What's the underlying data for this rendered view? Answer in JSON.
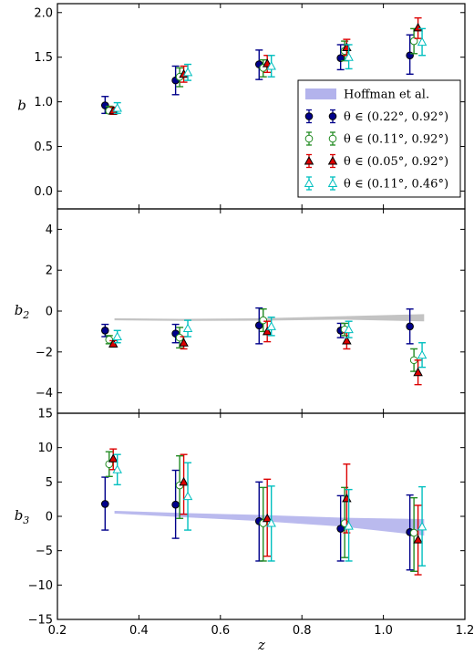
{
  "chart_data": {
    "type": "scatter",
    "xlabel": "z",
    "xlim": [
      0.2,
      1.2
    ],
    "x_ticks": [
      "0.2",
      "0.4",
      "0.6",
      "0.8",
      "1.0",
      "1.2"
    ],
    "legend_placement": "right",
    "legend": [
      {
        "label": "Hoffman et al.",
        "kind": "band",
        "color": "#b3b3ec"
      },
      {
        "label": "θ ∈ (0.22°, 0.92°)",
        "kind": "filled-circle",
        "color": "#00008b"
      },
      {
        "label": "θ ∈ (0.11°, 0.92°)",
        "kind": "open-circle",
        "color": "#228b22"
      },
      {
        "label": "θ ∈ (0.05°, 0.92°)",
        "kind": "filled-triangle",
        "color": "#dc0000"
      },
      {
        "label": "θ ∈ (0.11°, 0.46°)",
        "kind": "open-triangle",
        "color": "#00bfbf"
      }
    ],
    "panels": [
      {
        "ylabel": "b",
        "ylabel_sub": "",
        "ylim": [
          -0.2,
          2.1
        ],
        "y_ticks": [
          0.0,
          0.5,
          1.0,
          1.5,
          2.0
        ],
        "y_tick_labels": [
          "0.0",
          "0.5",
          "1.0",
          "1.5",
          "2.0"
        ],
        "series": [
          {
            "key": "s1",
            "x": [
              0.317,
              0.49,
              0.695,
              0.895,
              1.065
            ],
            "y": [
              0.96,
              1.24,
              1.42,
              1.49,
              1.52
            ],
            "yerr_low": [
              0.87,
              1.08,
              1.25,
              1.36,
              1.31
            ],
            "yerr_high": [
              1.06,
              1.4,
              1.58,
              1.64,
              1.75
            ]
          },
          {
            "key": "s2",
            "x": [
              0.327,
              0.5,
              0.705,
              0.905,
              1.075
            ],
            "y": [
              0.9,
              1.28,
              1.38,
              1.57,
              1.68
            ],
            "yerr_low": [
              0.87,
              1.17,
              1.28,
              1.46,
              1.54
            ],
            "yerr_high": [
              0.95,
              1.38,
              1.47,
              1.68,
              1.82
            ]
          },
          {
            "key": "s3",
            "x": [
              0.337,
              0.51,
              0.715,
              0.91,
              1.085
            ],
            "y": [
              0.9,
              1.31,
              1.43,
              1.61,
              1.83
            ],
            "yerr_low": [
              0.86,
              1.22,
              1.33,
              1.52,
              1.71
            ],
            "yerr_high": [
              0.94,
              1.4,
              1.52,
              1.7,
              1.94
            ]
          },
          {
            "key": "s4",
            "x": [
              0.347,
              0.52,
              0.725,
              0.915,
              1.095
            ],
            "y": [
              0.93,
              1.33,
              1.4,
              1.5,
              1.67
            ],
            "yerr_low": [
              0.87,
              1.24,
              1.28,
              1.37,
              1.52
            ],
            "yerr_high": [
              0.99,
              1.42,
              1.52,
              1.64,
              1.82
            ]
          }
        ]
      },
      {
        "ylabel": "b",
        "ylabel_sub": "2",
        "ylim": [
          -5,
          5
        ],
        "y_ticks": [
          -4,
          -2,
          0,
          2,
          4
        ],
        "y_tick_labels": [
          "−4",
          "−2",
          "0",
          "2",
          "4"
        ],
        "band": {
          "x": [
            0.34,
            0.5,
            0.7,
            0.9,
            1.1
          ],
          "low": [
            -0.45,
            -0.48,
            -0.47,
            -0.42,
            -0.5
          ],
          "high": [
            -0.35,
            -0.38,
            -0.35,
            -0.25,
            -0.15
          ],
          "color": "#bdbdbd"
        },
        "series": [
          {
            "key": "s1",
            "x": [
              0.317,
              0.49,
              0.695,
              0.895,
              1.065
            ],
            "y": [
              -0.95,
              -1.1,
              -0.7,
              -0.95,
              -0.75
            ],
            "yerr_low": [
              -1.25,
              -1.55,
              -1.6,
              -1.3,
              -1.6
            ],
            "yerr_high": [
              -0.65,
              -0.65,
              0.15,
              -0.6,
              0.1
            ]
          },
          {
            "key": "s2",
            "x": [
              0.327,
              0.5,
              0.705,
              0.905,
              1.075
            ],
            "y": [
              -1.4,
              -1.3,
              -0.45,
              -0.9,
              -2.4
            ],
            "yerr_low": [
              -1.6,
              -1.8,
              -1.0,
              -1.2,
              -2.95
            ],
            "yerr_high": [
              -1.2,
              -0.8,
              0.1,
              -0.6,
              -1.85
            ]
          },
          {
            "key": "s3",
            "x": [
              0.337,
              0.51,
              0.715,
              0.91,
              1.085
            ],
            "y": [
              -1.6,
              -1.55,
              -1.0,
              -1.45,
              -3.0
            ],
            "yerr_low": [
              -1.75,
              -1.85,
              -1.5,
              -1.85,
              -3.6
            ],
            "yerr_high": [
              -1.45,
              -1.25,
              -0.5,
              -1.05,
              -2.4
            ]
          },
          {
            "key": "s4",
            "x": [
              0.347,
              0.52,
              0.725,
              0.915,
              1.095
            ],
            "y": [
              -1.25,
              -0.85,
              -0.75,
              -0.9,
              -2.15
            ],
            "yerr_low": [
              -1.55,
              -1.25,
              -1.2,
              -1.3,
              -2.75
            ],
            "yerr_high": [
              -0.95,
              -0.45,
              -0.3,
              -0.5,
              -1.55
            ]
          }
        ]
      },
      {
        "ylabel": "b",
        "ylabel_sub": "3",
        "ylim": [
          -15,
          15
        ],
        "y_ticks": [
          -15,
          -10,
          -5,
          0,
          5,
          10,
          15
        ],
        "y_tick_labels": [
          "−15",
          "−10",
          "−5",
          "0",
          "5",
          "10",
          "15"
        ],
        "band": {
          "x": [
            0.34,
            0.5,
            0.7,
            0.9,
            1.1
          ],
          "low": [
            0.4,
            -0.1,
            -0.7,
            -1.5,
            -2.8
          ],
          "high": [
            0.8,
            0.5,
            0.2,
            -0.2,
            -0.4
          ],
          "color": "#b3b3ec"
        },
        "series": [
          {
            "key": "s1",
            "x": [
              0.317,
              0.49,
              0.695,
              0.895,
              1.065
            ],
            "y": [
              1.8,
              1.7,
              -0.7,
              -1.8,
              -2.3
            ],
            "yerr_low": [
              -2.0,
              -3.2,
              -6.5,
              -6.5,
              -7.8
            ],
            "yerr_high": [
              5.7,
              6.7,
              5.0,
              3.0,
              3.1
            ]
          },
          {
            "key": "s2",
            "x": [
              0.327,
              0.5,
              0.705,
              0.905,
              1.075
            ],
            "y": [
              7.6,
              4.5,
              -1.0,
              -1.0,
              -2.4
            ],
            "yerr_low": [
              5.8,
              -0.3,
              -6.5,
              -6.0,
              -8.0
            ],
            "yerr_high": [
              9.4,
              8.8,
              4.2,
              4.2,
              2.7
            ]
          },
          {
            "key": "s3",
            "x": [
              0.337,
              0.51,
              0.715,
              0.91,
              1.085
            ],
            "y": [
              8.4,
              5.0,
              -0.3,
              2.6,
              -3.4
            ],
            "yerr_low": [
              6.8,
              0.3,
              -5.8,
              -2.4,
              -8.5
            ],
            "yerr_high": [
              9.8,
              9.0,
              5.4,
              7.6,
              1.6
            ]
          },
          {
            "key": "s4",
            "x": [
              0.347,
              0.52,
              0.725,
              0.915,
              1.095
            ],
            "y": [
              6.8,
              2.9,
              -1.0,
              -1.4,
              -1.5
            ],
            "yerr_low": [
              4.6,
              -2.0,
              -6.5,
              -6.5,
              -7.2
            ],
            "yerr_high": [
              9.0,
              7.8,
              4.4,
              3.9,
              4.3
            ]
          }
        ]
      }
    ]
  }
}
